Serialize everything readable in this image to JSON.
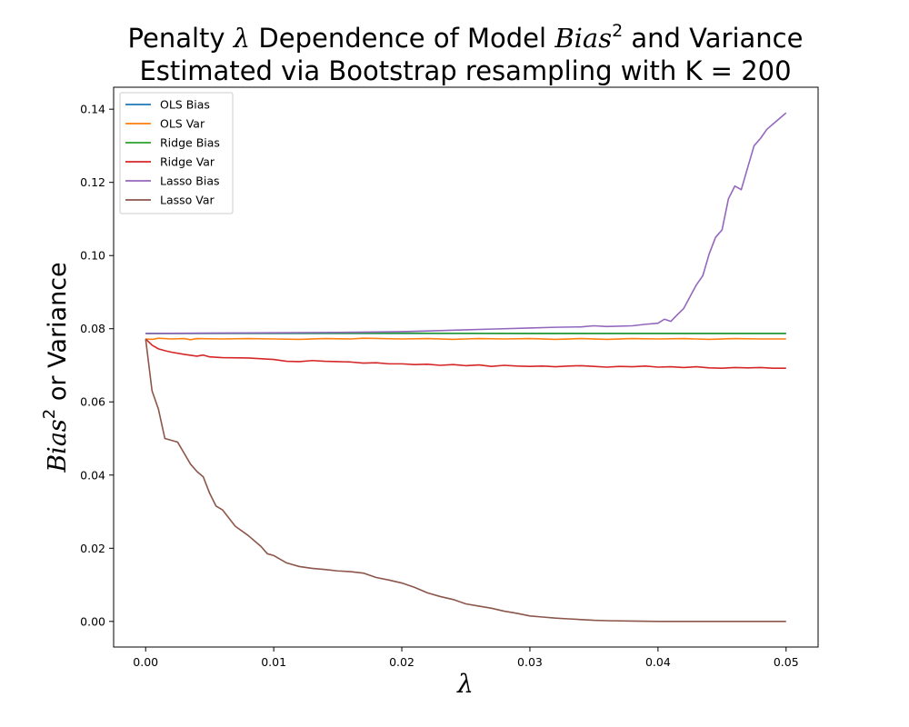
{
  "chart_data": {
    "type": "line",
    "title_line1_prefix": "Penalty ",
    "title_line1_lambda": "λ",
    "title_line1_middle": " Dependence of Model ",
    "title_line1_bias": "Bias",
    "title_line1_sup": "2",
    "title_line1_suffix": " and Variance",
    "title_line2": "Estimated via Bootstrap resampling with K = 200",
    "xlabel": "λ",
    "ylabel_bias": "Bias",
    "ylabel_sup": "2",
    "ylabel_suffix": " or Variance",
    "xlim": [
      -0.0025,
      0.0525
    ],
    "ylim": [
      -0.007,
      0.146
    ],
    "x_ticks": [
      "0.00",
      "0.01",
      "0.02",
      "0.03",
      "0.04",
      "0.05"
    ],
    "x_tick_values": [
      0,
      0.01,
      0.02,
      0.03,
      0.04,
      0.05
    ],
    "y_ticks": [
      "0.00",
      "0.02",
      "0.04",
      "0.06",
      "0.08",
      "0.10",
      "0.12",
      "0.14"
    ],
    "y_tick_values": [
      0,
      0.02,
      0.04,
      0.06,
      0.08,
      0.1,
      0.12,
      0.14
    ],
    "legend_position": "top-left",
    "series": [
      {
        "name": "OLS Bias",
        "color": "#1f77b4",
        "points": [
          [
            0,
            0.0787
          ],
          [
            0.05,
            0.0787
          ]
        ]
      },
      {
        "name": "OLS Var",
        "color": "#ff7f0e",
        "points": [
          [
            0,
            0.0772
          ],
          [
            0.0005,
            0.0771
          ],
          [
            0.001,
            0.0774
          ],
          [
            0.002,
            0.0772
          ],
          [
            0.003,
            0.0773
          ],
          [
            0.0035,
            0.077
          ],
          [
            0.004,
            0.0773
          ],
          [
            0.006,
            0.0772
          ],
          [
            0.008,
            0.0773
          ],
          [
            0.01,
            0.0772
          ],
          [
            0.012,
            0.0771
          ],
          [
            0.014,
            0.0773
          ],
          [
            0.016,
            0.0772
          ],
          [
            0.017,
            0.0774
          ],
          [
            0.02,
            0.0772
          ],
          [
            0.022,
            0.0773
          ],
          [
            0.024,
            0.0771
          ],
          [
            0.026,
            0.0773
          ],
          [
            0.028,
            0.0772
          ],
          [
            0.03,
            0.0773
          ],
          [
            0.032,
            0.0771
          ],
          [
            0.034,
            0.0773
          ],
          [
            0.036,
            0.0771
          ],
          [
            0.038,
            0.0773
          ],
          [
            0.04,
            0.0772
          ],
          [
            0.042,
            0.0773
          ],
          [
            0.044,
            0.0771
          ],
          [
            0.046,
            0.0773
          ],
          [
            0.048,
            0.0772
          ],
          [
            0.05,
            0.0772
          ]
        ]
      },
      {
        "name": "Ridge Bias",
        "color": "#2ca02c",
        "points": [
          [
            0,
            0.0787
          ],
          [
            0.01,
            0.0788
          ],
          [
            0.02,
            0.0788
          ],
          [
            0.03,
            0.0787
          ],
          [
            0.04,
            0.0787
          ],
          [
            0.05,
            0.0787
          ]
        ]
      },
      {
        "name": "Ridge Var",
        "color": "#d62728",
        "points": [
          [
            0,
            0.0772
          ],
          [
            0.0005,
            0.0755
          ],
          [
            0.001,
            0.0745
          ],
          [
            0.0015,
            0.074
          ],
          [
            0.002,
            0.0736
          ],
          [
            0.003,
            0.073
          ],
          [
            0.004,
            0.0725
          ],
          [
            0.0045,
            0.0728
          ],
          [
            0.005,
            0.0723
          ],
          [
            0.006,
            0.0721
          ],
          [
            0.008,
            0.072
          ],
          [
            0.01,
            0.0716
          ],
          [
            0.011,
            0.0711
          ],
          [
            0.012,
            0.071
          ],
          [
            0.013,
            0.0713
          ],
          [
            0.014,
            0.0711
          ],
          [
            0.015,
            0.071
          ],
          [
            0.016,
            0.0709
          ],
          [
            0.017,
            0.0706
          ],
          [
            0.018,
            0.0707
          ],
          [
            0.019,
            0.0704
          ],
          [
            0.02,
            0.0704
          ],
          [
            0.021,
            0.0702
          ],
          [
            0.022,
            0.0703
          ],
          [
            0.023,
            0.07
          ],
          [
            0.024,
            0.0702
          ],
          [
            0.025,
            0.0699
          ],
          [
            0.026,
            0.0701
          ],
          [
            0.027,
            0.0697
          ],
          [
            0.028,
            0.07
          ],
          [
            0.029,
            0.0698
          ],
          [
            0.03,
            0.0697
          ],
          [
            0.031,
            0.0698
          ],
          [
            0.032,
            0.0696
          ],
          [
            0.033,
            0.0698
          ],
          [
            0.034,
            0.0699
          ],
          [
            0.035,
            0.0697
          ],
          [
            0.036,
            0.0695
          ],
          [
            0.037,
            0.0697
          ],
          [
            0.038,
            0.0696
          ],
          [
            0.039,
            0.0698
          ],
          [
            0.04,
            0.0695
          ],
          [
            0.041,
            0.0696
          ],
          [
            0.042,
            0.0694
          ],
          [
            0.043,
            0.0696
          ],
          [
            0.044,
            0.0693
          ],
          [
            0.045,
            0.0692
          ],
          [
            0.046,
            0.0694
          ],
          [
            0.047,
            0.0693
          ],
          [
            0.048,
            0.0694
          ],
          [
            0.049,
            0.0692
          ],
          [
            0.05,
            0.0692
          ]
        ]
      },
      {
        "name": "Lasso Bias",
        "color": "#9467bd",
        "points": [
          [
            0,
            0.0787
          ],
          [
            0.005,
            0.0788
          ],
          [
            0.01,
            0.0789
          ],
          [
            0.015,
            0.079
          ],
          [
            0.018,
            0.0791
          ],
          [
            0.02,
            0.0792
          ],
          [
            0.022,
            0.0794
          ],
          [
            0.025,
            0.0797
          ],
          [
            0.027,
            0.0799
          ],
          [
            0.03,
            0.0802
          ],
          [
            0.032,
            0.0804
          ],
          [
            0.034,
            0.0805
          ],
          [
            0.035,
            0.0808
          ],
          [
            0.036,
            0.0806
          ],
          [
            0.038,
            0.0808
          ],
          [
            0.039,
            0.0812
          ],
          [
            0.04,
            0.0815
          ],
          [
            0.0405,
            0.0826
          ],
          [
            0.041,
            0.082
          ],
          [
            0.0415,
            0.0838
          ],
          [
            0.042,
            0.0855
          ],
          [
            0.043,
            0.092
          ],
          [
            0.0435,
            0.0945
          ],
          [
            0.044,
            0.1005
          ],
          [
            0.0445,
            0.105
          ],
          [
            0.045,
            0.107
          ],
          [
            0.0455,
            0.1155
          ],
          [
            0.046,
            0.119
          ],
          [
            0.0465,
            0.118
          ],
          [
            0.047,
            0.124
          ],
          [
            0.0475,
            0.13
          ],
          [
            0.048,
            0.132
          ],
          [
            0.0485,
            0.1345
          ],
          [
            0.049,
            0.136
          ],
          [
            0.0495,
            0.1375
          ],
          [
            0.05,
            0.139
          ]
        ]
      },
      {
        "name": "Lasso Var",
        "color": "#8c564b",
        "points": [
          [
            0,
            0.0772
          ],
          [
            0.0005,
            0.063
          ],
          [
            0.001,
            0.058
          ],
          [
            0.0015,
            0.05
          ],
          [
            0.002,
            0.0495
          ],
          [
            0.0025,
            0.049
          ],
          [
            0.003,
            0.046
          ],
          [
            0.0035,
            0.043
          ],
          [
            0.004,
            0.041
          ],
          [
            0.0045,
            0.0395
          ],
          [
            0.005,
            0.035
          ],
          [
            0.0055,
            0.0315
          ],
          [
            0.006,
            0.0305
          ],
          [
            0.007,
            0.026
          ],
          [
            0.008,
            0.0235
          ],
          [
            0.009,
            0.0205
          ],
          [
            0.0095,
            0.0185
          ],
          [
            0.01,
            0.018
          ],
          [
            0.011,
            0.016
          ],
          [
            0.012,
            0.015
          ],
          [
            0.013,
            0.0145
          ],
          [
            0.014,
            0.0142
          ],
          [
            0.015,
            0.0138
          ],
          [
            0.016,
            0.0136
          ],
          [
            0.017,
            0.0132
          ],
          [
            0.018,
            0.012
          ],
          [
            0.019,
            0.0113
          ],
          [
            0.02,
            0.0105
          ],
          [
            0.021,
            0.0093
          ],
          [
            0.022,
            0.0078
          ],
          [
            0.023,
            0.0068
          ],
          [
            0.024,
            0.006
          ],
          [
            0.025,
            0.0048
          ],
          [
            0.026,
            0.0042
          ],
          [
            0.027,
            0.0036
          ],
          [
            0.028,
            0.0028
          ],
          [
            0.029,
            0.0022
          ],
          [
            0.03,
            0.0015
          ],
          [
            0.031,
            0.0012
          ],
          [
            0.032,
            0.0009
          ],
          [
            0.033,
            0.0007
          ],
          [
            0.034,
            0.0005
          ],
          [
            0.035,
            0.0003
          ],
          [
            0.036,
            0.0002
          ],
          [
            0.038,
            0.0001
          ],
          [
            0.04,
            0
          ],
          [
            0.05,
            0
          ]
        ]
      }
    ]
  }
}
